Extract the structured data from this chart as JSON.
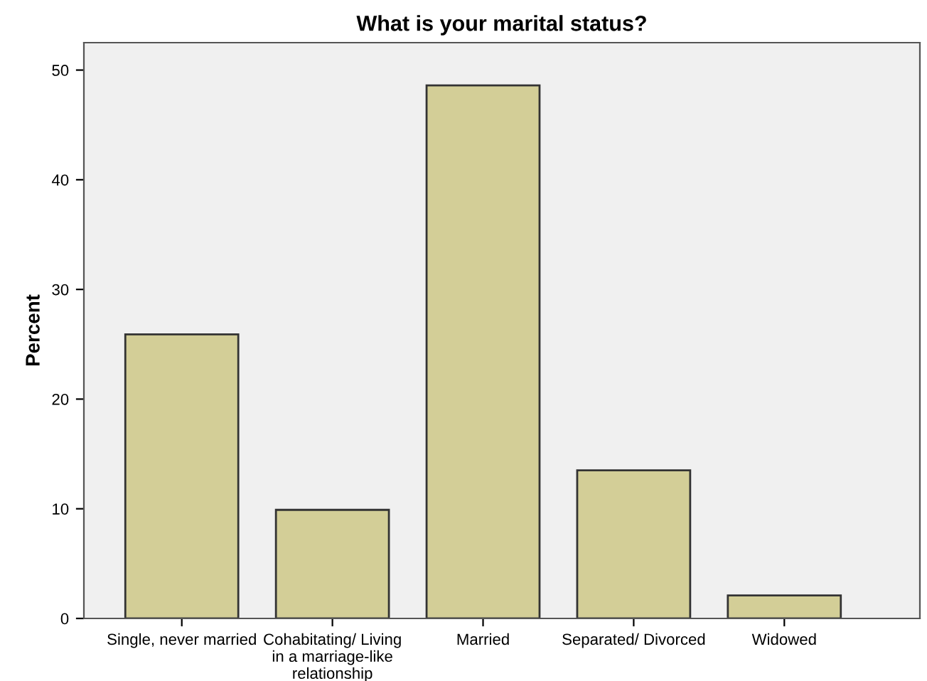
{
  "chart_data": {
    "type": "bar",
    "title": "What is your marital status?",
    "ylabel": "Percent",
    "categories": [
      "Single, never married",
      "Cohabitating/ Living\nin a marriage-like\nrelationship",
      "Married",
      "Separated/ Divorced",
      "Widowed"
    ],
    "values": [
      25.9,
      9.9,
      48.6,
      13.5,
      2.1
    ],
    "color": "#d3ce97",
    "ylim": [
      0,
      52.5
    ],
    "yticks": [
      0,
      10,
      20,
      30,
      40,
      50
    ],
    "grid": false
  }
}
